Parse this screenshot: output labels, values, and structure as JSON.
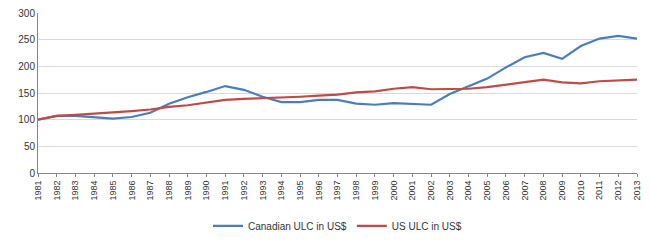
{
  "chart_data": {
    "type": "line",
    "categories": [
      "1981",
      "1982",
      "1983",
      "1984",
      "1985",
      "1986",
      "1987",
      "1988",
      "1989",
      "1990",
      "1991",
      "1992",
      "1993",
      "1994",
      "1995",
      "1996",
      "1997",
      "1998",
      "1999",
      "2000",
      "2001",
      "2002",
      "2003",
      "2004",
      "2005",
      "2006",
      "2007",
      "2008",
      "2009",
      "2010",
      "2011",
      "2012",
      "2013"
    ],
    "series": [
      {
        "name": "Canadian ULC in US$",
        "color": "#4a7ebb",
        "values": [
          100,
          107,
          107,
          104,
          102,
          105,
          113,
          130,
          142,
          152,
          163,
          156,
          143,
          133,
          133,
          137,
          137,
          130,
          128,
          131,
          130,
          128,
          148,
          163,
          177,
          198,
          217,
          225,
          214,
          238,
          252,
          257,
          252
        ]
      },
      {
        "name": "US ULC in US$",
        "color": "#be4b48",
        "values": [
          100,
          107,
          109,
          111,
          113,
          116,
          119,
          124,
          127,
          132,
          137,
          139,
          140,
          141,
          143,
          145,
          147,
          151,
          153,
          158,
          161,
          157,
          157,
          158,
          161,
          166,
          171,
          175,
          170,
          168,
          172,
          173,
          175
        ]
      }
    ],
    "ylim": [
      0,
      300
    ],
    "yticks": [
      0,
      50,
      100,
      150,
      200,
      250,
      300
    ],
    "grid": true,
    "legend": "bottom"
  }
}
